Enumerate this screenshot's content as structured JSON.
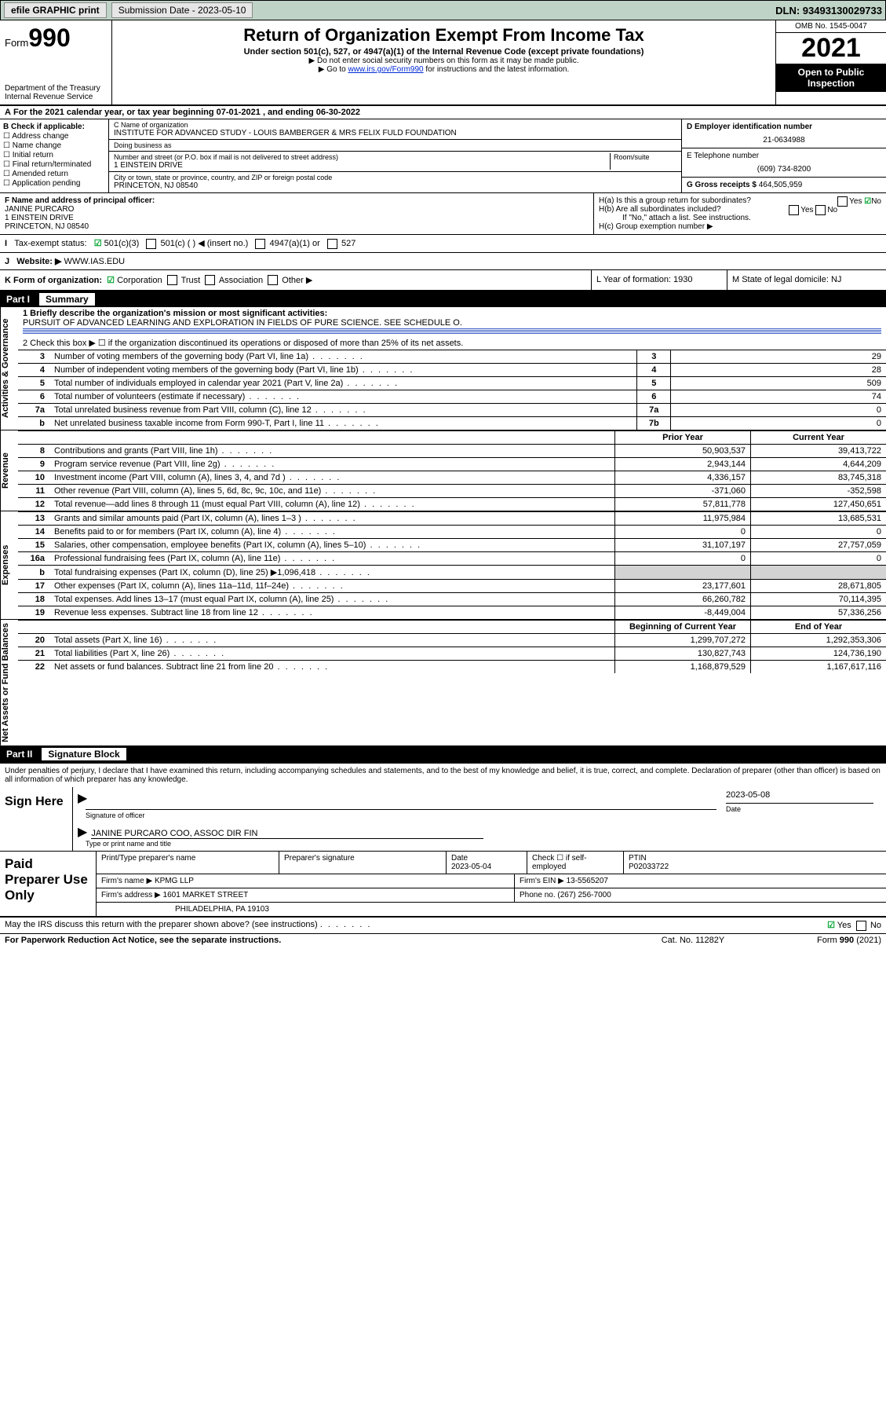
{
  "topbar": {
    "efile": "efile GRAPHIC print",
    "subdate_lbl": "Submission Date - 2023-05-10",
    "dln": "DLN: 93493130029733"
  },
  "hdr": {
    "form": "Form",
    "no": "990",
    "title": "Return of Organization Exempt From Income Tax",
    "sub1": "Under section 501(c), 527, or 4947(a)(1) of the Internal Revenue Code (except private foundations)",
    "sub2": "▶ Do not enter social security numbers on this form as it may be made public.",
    "sub3_pre": "▶ Go to ",
    "sub3_link": "www.irs.gov/Form990",
    "sub3_post": " for instructions and the latest information.",
    "dept": "Department of the Treasury\nInternal Revenue Service",
    "omb": "OMB No. 1545-0047",
    "year": "2021",
    "open": "Open to Public Inspection"
  },
  "A": {
    "text": "For the 2021 calendar year, or tax year beginning 07-01-2021   , and ending 06-30-2022"
  },
  "B": {
    "hdr": "B Check if applicable:",
    "items": [
      "Address change",
      "Name change",
      "Initial return",
      "Final return/terminated",
      "Amended return",
      "Application pending"
    ]
  },
  "C": {
    "name_lbl": "C Name of organization",
    "name": "INSTITUTE FOR ADVANCED STUDY - LOUIS BAMBERGER & MRS FELIX FULD FOUNDATION",
    "dba_lbl": "Doing business as",
    "dba": "",
    "street_lbl": "Number and street (or P.O. box if mail is not delivered to street address)",
    "room_lbl": "Room/suite",
    "street": "1 EINSTEIN DRIVE",
    "city_lbl": "City or town, state or province, country, and ZIP or foreign postal code",
    "city": "PRINCETON, NJ  08540"
  },
  "D": {
    "lbl": "D Employer identification number",
    "val": "21-0634988"
  },
  "E": {
    "lbl": "E Telephone number",
    "val": "(609) 734-8200"
  },
  "G": {
    "lbl": "G Gross receipts $",
    "val": "464,505,959"
  },
  "F": {
    "lbl": "F  Name and address of principal officer:",
    "name": "JANINE PURCARO",
    "addr1": "1 EINSTEIN DRIVE",
    "addr2": "PRINCETON, NJ  08540"
  },
  "H": {
    "a": "H(a)  Is this a group return for subordinates?",
    "a_yes": "Yes",
    "a_no": "No",
    "b": "H(b)  Are all subordinates included?",
    "b_yes": "Yes",
    "b_no": "No",
    "if": "If \"No,\" attach a list. See instructions.",
    "c": "H(c)  Group exemption number ▶"
  },
  "I": {
    "lbl": "Tax-exempt status:",
    "o1": "501(c)(3)",
    "o2": "501(c) (   ) ◀ (insert no.)",
    "o3": "4947(a)(1) or",
    "o4": "527"
  },
  "J": {
    "lbl": "Website: ▶",
    "val": " WWW.IAS.EDU"
  },
  "K": {
    "lbl": "K Form of organization:",
    "o1": "Corporation",
    "o2": "Trust",
    "o3": "Association",
    "o4": "Other ▶"
  },
  "L": {
    "lbl": "L Year of formation: 1930"
  },
  "M": {
    "lbl": "M State of legal domicile: NJ"
  },
  "part1": {
    "num": "Part I",
    "title": "Summary"
  },
  "s1": {
    "q1": "1   Briefly describe the organization's mission or most significant activities:",
    "mission": "PURSUIT OF ADVANCED LEARNING AND EXPLORATION IN FIELDS OF PURE SCIENCE. SEE SCHEDULE O.",
    "q2": "2   Check this box ▶ ☐  if the organization discontinued its operations or disposed of more than 25% of its net assets.",
    "rows": [
      {
        "n": "3",
        "d": "Number of voting members of the governing body (Part VI, line 1a)",
        "k": "3",
        "v": "29"
      },
      {
        "n": "4",
        "d": "Number of independent voting members of the governing body (Part VI, line 1b)",
        "k": "4",
        "v": "28"
      },
      {
        "n": "5",
        "d": "Total number of individuals employed in calendar year 2021 (Part V, line 2a)",
        "k": "5",
        "v": "509"
      },
      {
        "n": "6",
        "d": "Total number of volunteers (estimate if necessary)",
        "k": "6",
        "v": "74"
      },
      {
        "n": "7a",
        "d": "Total unrelated business revenue from Part VIII, column (C), line 12",
        "k": "7a",
        "v": "0"
      },
      {
        "n": "b",
        "d": "Net unrelated business taxable income from Form 990-T, Part I, line 11",
        "k": "7b",
        "v": "0"
      }
    ]
  },
  "rev": {
    "hdr": {
      "p": "Prior Year",
      "c": "Current Year"
    },
    "rows": [
      {
        "n": "8",
        "d": "Contributions and grants (Part VIII, line 1h)",
        "p": "50,903,537",
        "c": "39,413,722"
      },
      {
        "n": "9",
        "d": "Program service revenue (Part VIII, line 2g)",
        "p": "2,943,144",
        "c": "4,644,209"
      },
      {
        "n": "10",
        "d": "Investment income (Part VIII, column (A), lines 3, 4, and 7d )",
        "p": "4,336,157",
        "c": "83,745,318"
      },
      {
        "n": "11",
        "d": "Other revenue (Part VIII, column (A), lines 5, 6d, 8c, 9c, 10c, and 11e)",
        "p": "-371,060",
        "c": "-352,598"
      },
      {
        "n": "12",
        "d": "Total revenue—add lines 8 through 11 (must equal Part VIII, column (A), line 12)",
        "p": "57,811,778",
        "c": "127,450,651"
      }
    ]
  },
  "exp": {
    "rows": [
      {
        "n": "13",
        "d": "Grants and similar amounts paid (Part IX, column (A), lines 1–3 )",
        "p": "11,975,984",
        "c": "13,685,531"
      },
      {
        "n": "14",
        "d": "Benefits paid to or for members (Part IX, column (A), line 4)",
        "p": "0",
        "c": "0"
      },
      {
        "n": "15",
        "d": "Salaries, other compensation, employee benefits (Part IX, column (A), lines 5–10)",
        "p": "31,107,197",
        "c": "27,757,059"
      },
      {
        "n": "16a",
        "d": "Professional fundraising fees (Part IX, column (A), line 11e)",
        "p": "0",
        "c": "0"
      },
      {
        "n": "b",
        "d": "Total fundraising expenses (Part IX, column (D), line 25) ▶1,096,418",
        "p": "",
        "c": "",
        "grey": true
      },
      {
        "n": "17",
        "d": "Other expenses (Part IX, column (A), lines 11a–11d, 11f–24e)",
        "p": "23,177,601",
        "c": "28,671,805"
      },
      {
        "n": "18",
        "d": "Total expenses. Add lines 13–17 (must equal Part IX, column (A), line 25)",
        "p": "66,260,782",
        "c": "70,114,395"
      },
      {
        "n": "19",
        "d": "Revenue less expenses. Subtract line 18 from line 12",
        "p": "-8,449,004",
        "c": "57,336,256"
      }
    ]
  },
  "net": {
    "hdr": {
      "p": "Beginning of Current Year",
      "c": "End of Year"
    },
    "rows": [
      {
        "n": "20",
        "d": "Total assets (Part X, line 16)",
        "p": "1,299,707,272",
        "c": "1,292,353,306"
      },
      {
        "n": "21",
        "d": "Total liabilities (Part X, line 26)",
        "p": "130,827,743",
        "c": "124,736,190"
      },
      {
        "n": "22",
        "d": "Net assets or fund balances. Subtract line 21 from line 20",
        "p": "1,168,879,529",
        "c": "1,167,617,116"
      }
    ]
  },
  "part2": {
    "num": "Part II",
    "title": "Signature Block"
  },
  "sig": {
    "decl": "Under penalties of perjury, I declare that I have examined this return, including accompanying schedules and statements, and to the best of my knowledge and belief, it is true, correct, and complete. Declaration of preparer (other than officer) is based on all information of which preparer has any knowledge.",
    "here": "Sign Here",
    "sig_lbl": "Signature of officer",
    "date": "2023-05-08",
    "date_lbl": "Date",
    "name": "JANINE PURCARO  COO, ASSOC DIR FIN",
    "name_lbl": "Type or print name and title"
  },
  "paid": {
    "lab": "Paid Preparer Use Only",
    "h": {
      "c1": "Print/Type preparer's name",
      "c2": "Preparer's signature",
      "c3": "Date",
      "c4": "Check ☐ if self-employed",
      "c5": "PTIN"
    },
    "r1": {
      "c1": "",
      "c2": "",
      "c3": "2023-05-04",
      "c5": "P02033722"
    },
    "r2": {
      "l": "Firm's name    ▶",
      "v": "KPMG LLP",
      "r": "Firm's EIN ▶ 13-5565207"
    },
    "r3": {
      "l": "Firm's address ▶",
      "v": "1601 MARKET STREET",
      "r": "Phone no. (267) 256-7000"
    },
    "r4": {
      "v": "PHILADELPHIA, PA  19103"
    }
  },
  "may": {
    "q": "May the IRS discuss this return with the preparer shown above? (see instructions)",
    "yes": "Yes",
    "no": "No"
  },
  "footer": {
    "l": "For Paperwork Reduction Act Notice, see the separate instructions.",
    "m": "Cat. No. 11282Y",
    "r": "Form 990 (2021)"
  },
  "vtabs": {
    "a": "Activities & Governance",
    "r": "Revenue",
    "e": "Expenses",
    "n": "Net Assets or Fund Balances"
  }
}
